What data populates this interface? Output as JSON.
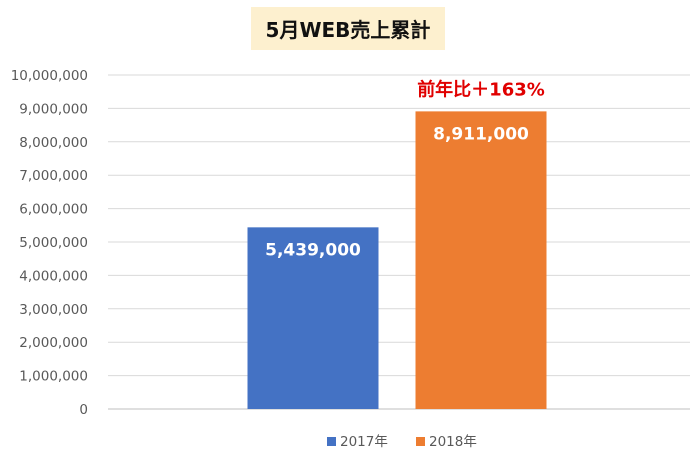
{
  "chart_data": {
    "type": "bar",
    "title": "5月WEB売上累計",
    "categories": [
      "2017年",
      "2018年"
    ],
    "series": [
      {
        "name": "2017年",
        "value": 5439000,
        "label": "5,439,000",
        "color": "#4472c4"
      },
      {
        "name": "2018年",
        "value": 8911000,
        "label": "8,911,000",
        "color": "#ed7d31"
      }
    ],
    "ylim": [
      0,
      10000000
    ],
    "yticks": [
      "0",
      "1,000,000",
      "2,000,000",
      "3,000,000",
      "4,000,000",
      "5,000,000",
      "6,000,000",
      "7,000,000",
      "8,000,000",
      "9,000,000",
      "10,000,000"
    ],
    "annotation": "前年比＋163%",
    "annotation_color": "#e00000",
    "grid": true,
    "legend": "bottom"
  }
}
